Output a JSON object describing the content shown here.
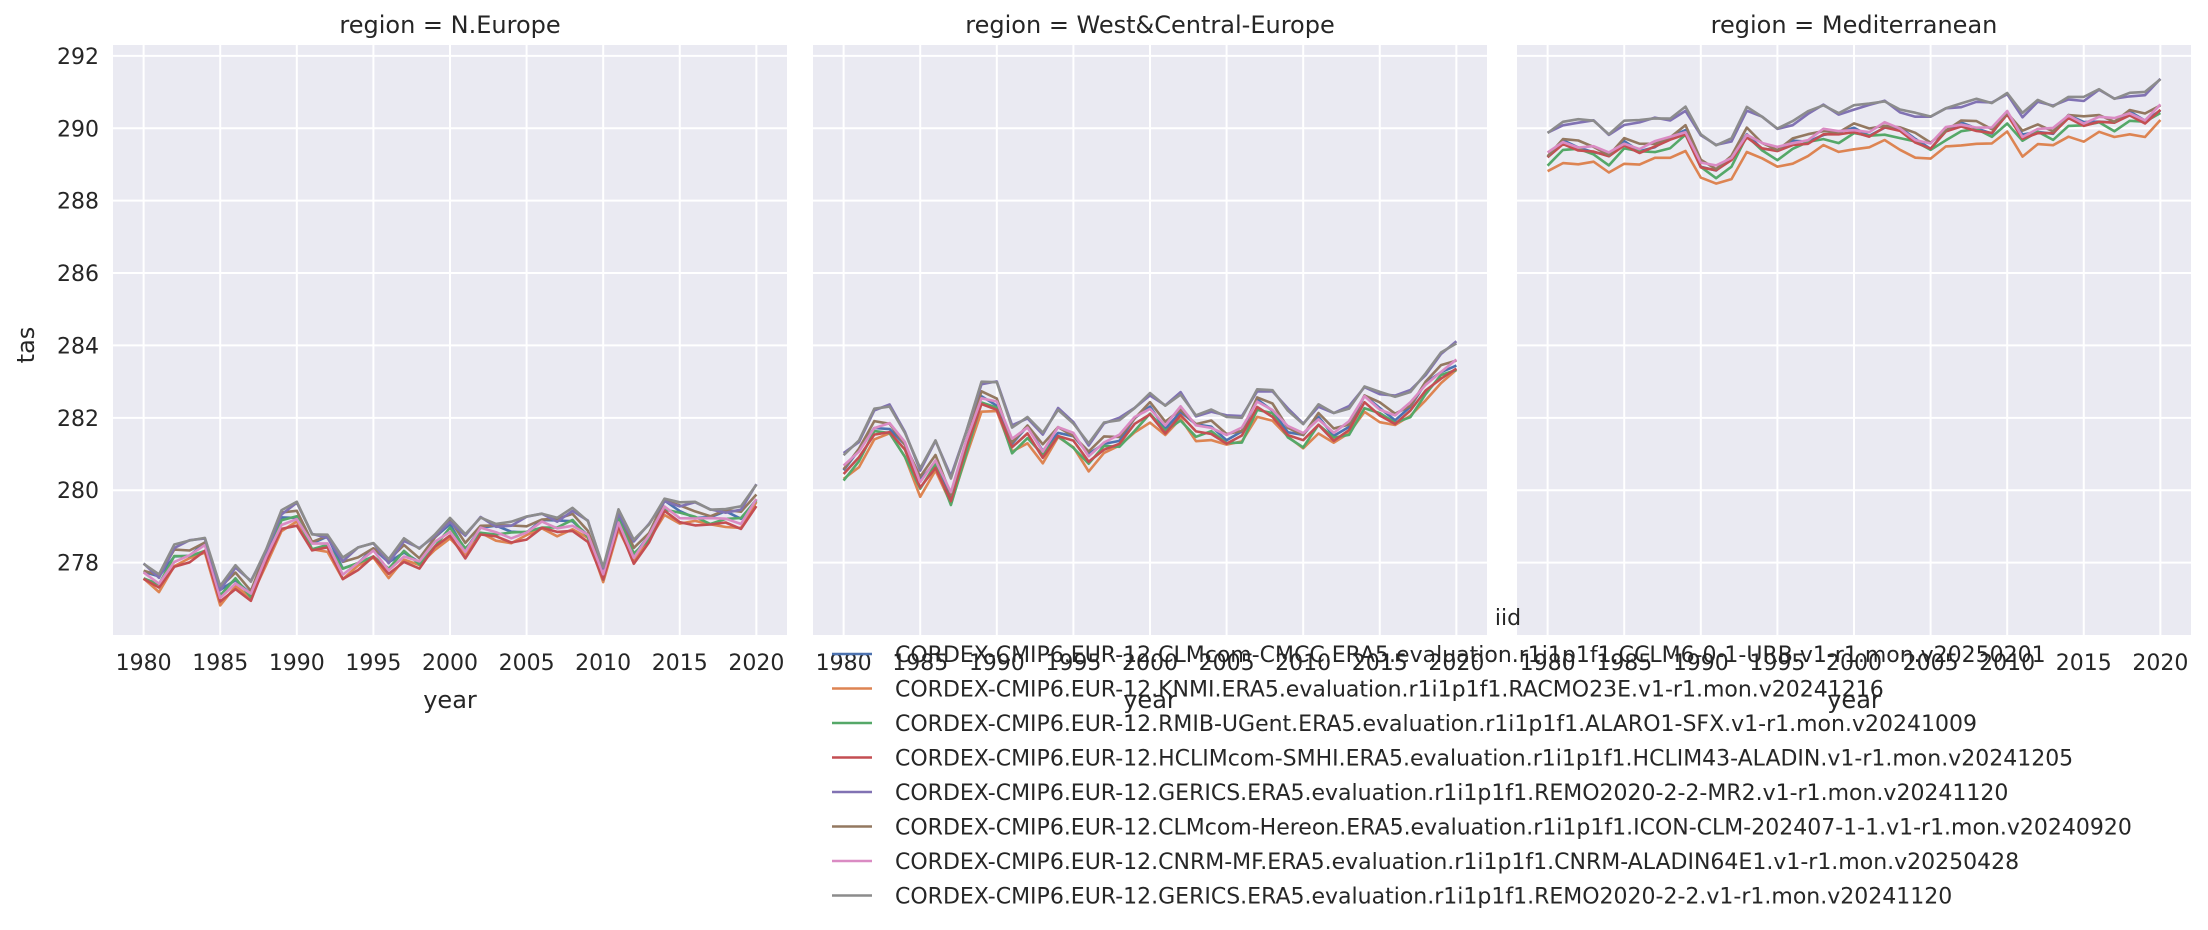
{
  "chart_data": {
    "type": "line",
    "ylabel": "tas",
    "xlabel": "year",
    "xlim": [
      1978,
      2022
    ],
    "ylim": [
      276,
      292.3
    ],
    "x_ticks": [
      1980,
      1985,
      1990,
      1995,
      2000,
      2005,
      2010,
      2015,
      2020
    ],
    "y_ticks": [
      278,
      280,
      282,
      284,
      286,
      288,
      290,
      292
    ],
    "grid": true,
    "legend": {
      "title": "iid",
      "placement": "bottom-center",
      "entries": [
        {
          "label": "CORDEX-CMIP6.EUR-12.CLMcom-CMCC.ERA5.evaluation.r1i1p1f1.CCLM6-0-1-URB.v1-r1.mon.v20250201",
          "color": "#4c72b0"
        },
        {
          "label": "CORDEX-CMIP6.EUR-12.KNMI.ERA5.evaluation.r1i1p1f1.RACMO23E.v1-r1.mon.v20241216",
          "color": "#dd8452"
        },
        {
          "label": "CORDEX-CMIP6.EUR-12.RMIB-UGent.ERA5.evaluation.r1i1p1f1.ALARO1-SFX.v1-r1.mon.v20241009",
          "color": "#55a868"
        },
        {
          "label": "CORDEX-CMIP6.EUR-12.HCLIMcom-SMHI.ERA5.evaluation.r1i1p1f1.HCLIM43-ALADIN.v1-r1.mon.v20241205",
          "color": "#c44e52"
        },
        {
          "label": "CORDEX-CMIP6.EUR-12.GERICS.ERA5.evaluation.r1i1p1f1.REMO2020-2-2-MR2.v1-r1.mon.v20241120",
          "color": "#8172b3"
        },
        {
          "label": "CORDEX-CMIP6.EUR-12.CLMcom-Hereon.ERA5.evaluation.r1i1p1f1.ICON-CLM-202407-1-1.v1-r1.mon.v20240920",
          "color": "#937860"
        },
        {
          "label": "CORDEX-CMIP6.EUR-12.CNRM-MF.ERA5.evaluation.r1i1p1f1.CNRM-ALADIN64E1.v1-r1.mon.v20250428",
          "color": "#da8bc3"
        },
        {
          "label": "CORDEX-CMIP6.EUR-12.GERICS.ERA5.evaluation.r1i1p1f1.REMO2020-2-2.v1-r1.mon.v20241120",
          "color": "#8c8c8c"
        }
      ]
    },
    "years": [
      1980,
      1981,
      1982,
      1983,
      1984,
      1985,
      1986,
      1987,
      1988,
      1989,
      1990,
      1991,
      1992,
      1993,
      1994,
      1995,
      1996,
      1997,
      1998,
      1999,
      2000,
      2001,
      2002,
      2003,
      2004,
      2005,
      2006,
      2007,
      2008,
      2009,
      2010,
      2011,
      2012,
      2013,
      2014,
      2015,
      2016,
      2017,
      2018,
      2019,
      2020
    ],
    "panels": [
      {
        "title": "region = N.Europe",
        "base": [
          277.75,
          277.5,
          278.2,
          278.3,
          278.5,
          277.15,
          277.6,
          277.2,
          278.2,
          279.2,
          279.35,
          278.55,
          278.6,
          277.85,
          278.1,
          278.35,
          277.9,
          278.35,
          278.1,
          278.6,
          279.0,
          278.45,
          279.0,
          278.9,
          278.85,
          278.95,
          279.15,
          279.05,
          279.2,
          278.85,
          277.7,
          279.25,
          278.3,
          278.8,
          279.6,
          279.4,
          279.35,
          279.25,
          279.3,
          279.25,
          279.85
        ],
        "offsets": [
          0.0,
          -0.25,
          -0.1,
          -0.25,
          0.2,
          0.1,
          -0.1,
          0.25
        ]
      },
      {
        "title": "region = West&Central-Europe",
        "base": [
          280.55,
          281.0,
          281.75,
          281.8,
          281.2,
          280.2,
          280.85,
          279.85,
          281.25,
          282.55,
          282.45,
          281.3,
          281.65,
          281.1,
          281.7,
          281.45,
          280.9,
          281.35,
          281.45,
          281.9,
          282.25,
          281.8,
          282.2,
          281.7,
          281.75,
          281.5,
          281.6,
          282.4,
          282.25,
          281.7,
          281.45,
          281.95,
          281.6,
          281.8,
          282.5,
          282.25,
          282.05,
          282.3,
          282.85,
          283.3,
          283.55
        ],
        "offsets": [
          0.0,
          -0.3,
          -0.2,
          -0.15,
          0.45,
          0.1,
          0.05,
          0.45
        ]
      },
      {
        "title": "region = Mediterranean",
        "base": [
          289.2,
          289.55,
          289.5,
          289.45,
          289.2,
          289.55,
          289.45,
          289.55,
          289.65,
          289.9,
          289.05,
          288.85,
          289.1,
          289.85,
          289.55,
          289.35,
          289.55,
          289.7,
          289.9,
          289.8,
          289.95,
          289.9,
          290.05,
          289.9,
          289.7,
          289.55,
          289.9,
          290.05,
          290.05,
          289.95,
          290.35,
          289.75,
          290.0,
          289.9,
          290.25,
          290.15,
          290.3,
          290.15,
          290.35,
          290.25,
          290.6
        ],
        "offsets": [
          0.0,
          -0.45,
          -0.15,
          -0.05,
          0.65,
          0.1,
          0.05,
          0.7
        ]
      }
    ]
  }
}
